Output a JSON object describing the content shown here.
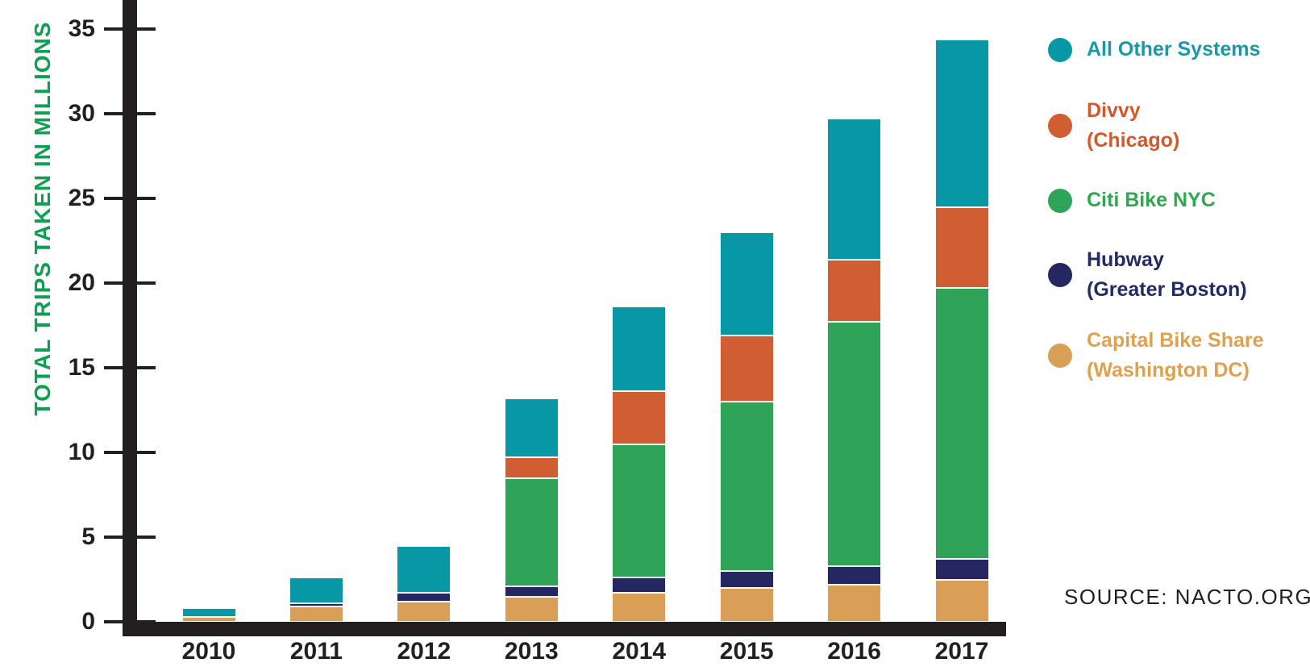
{
  "chart_data": {
    "type": "bar",
    "variant": "stacked",
    "title": "",
    "xlabel": "",
    "ylabel": "TOTAL TRIPS TAKEN IN MILLIONS",
    "units": "millions of trips",
    "ylim": [
      0,
      36.5
    ],
    "yticks": [
      0,
      5,
      10,
      15,
      20,
      25,
      30,
      35
    ],
    "grid": false,
    "legend_position": "right",
    "categories": [
      "2010",
      "2011",
      "2012",
      "2013",
      "2014",
      "2015",
      "2016",
      "2017"
    ],
    "series": [
      {
        "name": "Capital Bike Share (Washington DC)",
        "color": "#DA9F56",
        "values": [
          0.3,
          0.9,
          1.2,
          1.5,
          1.7,
          2.0,
          2.2,
          2.5
        ]
      },
      {
        "name": "Hubway (Greater Boston)",
        "color": "#252763",
        "values": [
          0,
          0.2,
          0.5,
          0.6,
          0.9,
          1.0,
          1.1,
          1.2
        ]
      },
      {
        "name": "Citi Bike NYC",
        "color": "#2FA458",
        "values": [
          0,
          0,
          0,
          6.4,
          7.9,
          10.0,
          14.4,
          16.0
        ]
      },
      {
        "name": "Divvy (Chicago)",
        "color": "#D15D33",
        "values": [
          0,
          0,
          0,
          1.2,
          3.1,
          3.9,
          3.7,
          4.8
        ]
      },
      {
        "name": "All Other Systems",
        "color": "#0797A5",
        "values": [
          0.5,
          1.5,
          2.8,
          3.5,
          5.0,
          6.1,
          8.3,
          9.9
        ]
      }
    ],
    "totals": [
      0.8,
      2.6,
      4.5,
      13.2,
      18.6,
      23.0,
      29.7,
      34.4
    ],
    "source": "SOURCE: NACTO.ORG"
  },
  "legend": {
    "items": [
      {
        "label": "All Other Systems",
        "sublabel": "",
        "color": "#0797A5",
        "text_color": "#1899A8"
      },
      {
        "label": "Divvy",
        "sublabel": "(Chicago)",
        "color": "#D15D33",
        "text_color": "#D05A2E"
      },
      {
        "label": "Citi Bike NYC",
        "sublabel": "",
        "color": "#2FA458",
        "text_color": "#2EA84F"
      },
      {
        "label": "Hubway",
        "sublabel": "(Greater Boston)",
        "color": "#252763",
        "text_color": "#232B66"
      },
      {
        "label": "Capital Bike Share",
        "sublabel": "(Washington DC)",
        "color": "#DA9F56",
        "text_color": "#DFA14E"
      }
    ]
  },
  "colors": {
    "axis": "#231F20",
    "y_axis_title": "#0FA04F",
    "background": "#FFFFFF"
  }
}
